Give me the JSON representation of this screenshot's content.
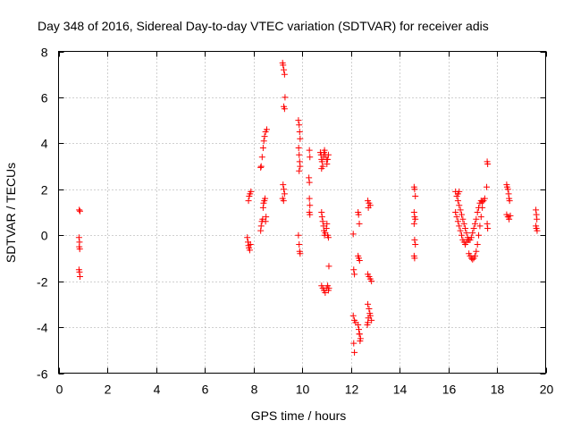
{
  "chart_data": {
    "type": "scatter",
    "title": "Day 348 of 2016, Sidereal Day-to-day VTEC variation (SDTVAR) for receiver adis",
    "xlabel": "GPS time / hours",
    "ylabel": "SDTVAR / TECUs",
    "xlim": [
      0,
      20
    ],
    "ylim": [
      -6,
      8
    ],
    "xticks": [
      0,
      2,
      4,
      6,
      8,
      10,
      12,
      14,
      16,
      18,
      20
    ],
    "yticks": [
      -6,
      -4,
      -2,
      0,
      2,
      4,
      6,
      8
    ],
    "grid": true,
    "marker": "+",
    "color": "#ff0000",
    "series": [
      {
        "name": "SDTVAR",
        "points": [
          [
            0.85,
            1.1
          ],
          [
            0.88,
            1.05
          ],
          [
            0.84,
            -0.1
          ],
          [
            0.86,
            -0.3
          ],
          [
            0.85,
            -0.5
          ],
          [
            0.87,
            -0.6
          ],
          [
            0.84,
            -1.5
          ],
          [
            0.86,
            -1.6
          ],
          [
            0.88,
            -1.8
          ],
          [
            7.75,
            -0.1
          ],
          [
            7.78,
            -0.3
          ],
          [
            7.8,
            -0.45
          ],
          [
            7.82,
            -0.55
          ],
          [
            7.85,
            -0.65
          ],
          [
            7.88,
            -0.4
          ],
          [
            7.8,
            1.5
          ],
          [
            7.83,
            1.7
          ],
          [
            7.86,
            1.8
          ],
          [
            7.9,
            1.9
          ],
          [
            8.3,
            0.2
          ],
          [
            8.32,
            0.4
          ],
          [
            8.35,
            0.6
          ],
          [
            8.38,
            0.7
          ],
          [
            8.4,
            1.2
          ],
          [
            8.42,
            1.4
          ],
          [
            8.45,
            1.5
          ],
          [
            8.48,
            1.6
          ],
          [
            8.5,
            0.6
          ],
          [
            8.52,
            0.8
          ],
          [
            8.3,
            2.95
          ],
          [
            8.32,
            3.0
          ],
          [
            8.36,
            3.4
          ],
          [
            8.4,
            3.8
          ],
          [
            8.43,
            4.1
          ],
          [
            8.46,
            4.3
          ],
          [
            8.5,
            4.5
          ],
          [
            8.55,
            4.6
          ],
          [
            9.2,
            7.5
          ],
          [
            9.22,
            7.4
          ],
          [
            9.25,
            7.2
          ],
          [
            9.28,
            7.0
          ],
          [
            9.3,
            6.0
          ],
          [
            9.25,
            5.6
          ],
          [
            9.28,
            5.5
          ],
          [
            9.22,
            2.2
          ],
          [
            9.25,
            2.0
          ],
          [
            9.28,
            1.8
          ],
          [
            9.2,
            1.6
          ],
          [
            9.24,
            1.5
          ],
          [
            9.85,
            5.0
          ],
          [
            9.88,
            4.8
          ],
          [
            9.9,
            4.5
          ],
          [
            9.92,
            4.2
          ],
          [
            9.86,
            3.8
          ],
          [
            9.88,
            3.5
          ],
          [
            9.9,
            3.2
          ],
          [
            9.92,
            3.0
          ],
          [
            9.88,
            2.8
          ],
          [
            9.85,
            0.0
          ],
          [
            9.88,
            -0.4
          ],
          [
            9.9,
            -0.7
          ],
          [
            9.92,
            -0.8
          ],
          [
            10.3,
            3.7
          ],
          [
            10.32,
            3.4
          ],
          [
            10.28,
            2.5
          ],
          [
            10.3,
            2.3
          ],
          [
            10.3,
            1.6
          ],
          [
            10.32,
            1.3
          ],
          [
            10.3,
            1.0
          ],
          [
            10.32,
            0.9
          ],
          [
            10.75,
            3.6
          ],
          [
            10.78,
            3.5
          ],
          [
            10.8,
            3.3
          ],
          [
            10.82,
            3.2
          ],
          [
            10.85,
            3.0
          ],
          [
            10.88,
            3.4
          ],
          [
            10.9,
            3.6
          ],
          [
            10.92,
            3.7
          ],
          [
            10.95,
            3.5
          ],
          [
            11.0,
            3.3
          ],
          [
            11.02,
            3.1
          ],
          [
            11.05,
            3.3
          ],
          [
            11.08,
            3.5
          ],
          [
            10.8,
            2.9
          ],
          [
            10.8,
            1.0
          ],
          [
            10.82,
            0.8
          ],
          [
            10.85,
            0.6
          ],
          [
            10.88,
            0.4
          ],
          [
            10.9,
            0.2
          ],
          [
            10.92,
            0.0
          ],
          [
            10.95,
            0.1
          ],
          [
            11.0,
            0.3
          ],
          [
            11.02,
            0.5
          ],
          [
            11.05,
            0.0
          ],
          [
            11.08,
            -0.1
          ],
          [
            10.8,
            -2.2
          ],
          [
            10.85,
            -2.3
          ],
          [
            10.9,
            -2.4
          ],
          [
            10.95,
            -2.5
          ],
          [
            11.0,
            -2.3
          ],
          [
            11.05,
            -2.2
          ],
          [
            11.08,
            -2.4
          ],
          [
            11.1,
            -2.3
          ],
          [
            11.1,
            -1.35
          ],
          [
            12.1,
            0.05
          ],
          [
            12.12,
            -1.5
          ],
          [
            12.15,
            -1.7
          ],
          [
            12.1,
            -3.5
          ],
          [
            12.15,
            -3.7
          ],
          [
            12.2,
            -3.8
          ],
          [
            12.12,
            -4.7
          ],
          [
            12.15,
            -5.1
          ],
          [
            12.3,
            1.0
          ],
          [
            12.32,
            0.9
          ],
          [
            12.35,
            0.5
          ],
          [
            12.3,
            -0.9
          ],
          [
            12.33,
            -1.0
          ],
          [
            12.36,
            -1.1
          ],
          [
            12.3,
            -3.9
          ],
          [
            12.33,
            -4.1
          ],
          [
            12.36,
            -4.3
          ],
          [
            12.4,
            -4.5
          ],
          [
            12.38,
            -4.6
          ],
          [
            12.35,
            -4.3
          ],
          [
            12.7,
            1.5
          ],
          [
            12.75,
            1.4
          ],
          [
            12.8,
            1.3
          ],
          [
            12.72,
            1.2
          ],
          [
            12.7,
            -1.7
          ],
          [
            12.75,
            -1.8
          ],
          [
            12.8,
            -1.9
          ],
          [
            12.85,
            -2.0
          ],
          [
            12.7,
            -3.0
          ],
          [
            12.75,
            -3.2
          ],
          [
            12.8,
            -3.5
          ],
          [
            12.85,
            -3.7
          ],
          [
            12.7,
            -3.8
          ],
          [
            12.68,
            -3.9
          ],
          [
            12.72,
            -3.6
          ],
          [
            12.78,
            -3.4
          ],
          [
            14.6,
            2.1
          ],
          [
            14.62,
            2.0
          ],
          [
            14.65,
            1.7
          ],
          [
            14.6,
            1.0
          ],
          [
            14.62,
            0.8
          ],
          [
            14.65,
            0.7
          ],
          [
            14.6,
            0.5
          ],
          [
            14.62,
            -0.2
          ],
          [
            14.65,
            -0.4
          ],
          [
            14.6,
            -0.9
          ],
          [
            14.62,
            -1.0
          ],
          [
            16.3,
            1.9
          ],
          [
            16.35,
            1.7
          ],
          [
            16.4,
            1.5
          ],
          [
            16.45,
            1.3
          ],
          [
            16.5,
            1.1
          ],
          [
            16.55,
            0.9
          ],
          [
            16.6,
            0.7
          ],
          [
            16.65,
            0.5
          ],
          [
            16.7,
            0.3
          ],
          [
            16.75,
            0.1
          ],
          [
            16.8,
            -0.1
          ],
          [
            16.85,
            -0.2
          ],
          [
            16.9,
            -0.2
          ],
          [
            16.95,
            -0.1
          ],
          [
            17.0,
            0.1
          ],
          [
            17.05,
            0.3
          ],
          [
            17.1,
            0.5
          ],
          [
            17.15,
            0.7
          ],
          [
            17.2,
            1.0
          ],
          [
            17.25,
            1.2
          ],
          [
            17.3,
            1.4
          ],
          [
            17.35,
            1.5
          ],
          [
            17.4,
            1.45
          ],
          [
            16.3,
            1.0
          ],
          [
            16.35,
            0.8
          ],
          [
            16.4,
            0.6
          ],
          [
            16.45,
            0.4
          ],
          [
            16.5,
            0.2
          ],
          [
            16.55,
            0.0
          ],
          [
            16.6,
            -0.2
          ],
          [
            16.65,
            -0.3
          ],
          [
            16.7,
            -0.4
          ],
          [
            16.75,
            -0.3
          ],
          [
            16.8,
            -0.2
          ],
          [
            16.4,
            1.8
          ],
          [
            16.45,
            1.9
          ],
          [
            16.85,
            -0.8
          ],
          [
            16.9,
            -0.9
          ],
          [
            16.95,
            -1.0
          ],
          [
            17.0,
            -1.05
          ],
          [
            17.05,
            -1.0
          ],
          [
            17.1,
            -0.9
          ],
          [
            17.15,
            -0.7
          ],
          [
            17.2,
            -0.4
          ],
          [
            17.25,
            0.0
          ],
          [
            17.3,
            0.4
          ],
          [
            17.35,
            0.8
          ],
          [
            17.4,
            1.2
          ],
          [
            17.45,
            1.5
          ],
          [
            17.5,
            1.6
          ],
          [
            17.6,
            3.2
          ],
          [
            17.62,
            3.1
          ],
          [
            17.58,
            2.1
          ],
          [
            17.6,
            0.5
          ],
          [
            17.62,
            0.3
          ],
          [
            18.4,
            2.2
          ],
          [
            18.42,
            2.1
          ],
          [
            18.45,
            2.0
          ],
          [
            18.48,
            1.8
          ],
          [
            18.5,
            1.6
          ],
          [
            18.52,
            1.5
          ],
          [
            18.4,
            0.9
          ],
          [
            18.45,
            0.8
          ],
          [
            18.5,
            0.7
          ],
          [
            18.55,
            0.85
          ],
          [
            19.6,
            1.1
          ],
          [
            19.62,
            0.9
          ],
          [
            19.64,
            0.7
          ],
          [
            19.6,
            0.4
          ],
          [
            19.62,
            0.3
          ],
          [
            19.65,
            0.2
          ]
        ]
      }
    ]
  }
}
